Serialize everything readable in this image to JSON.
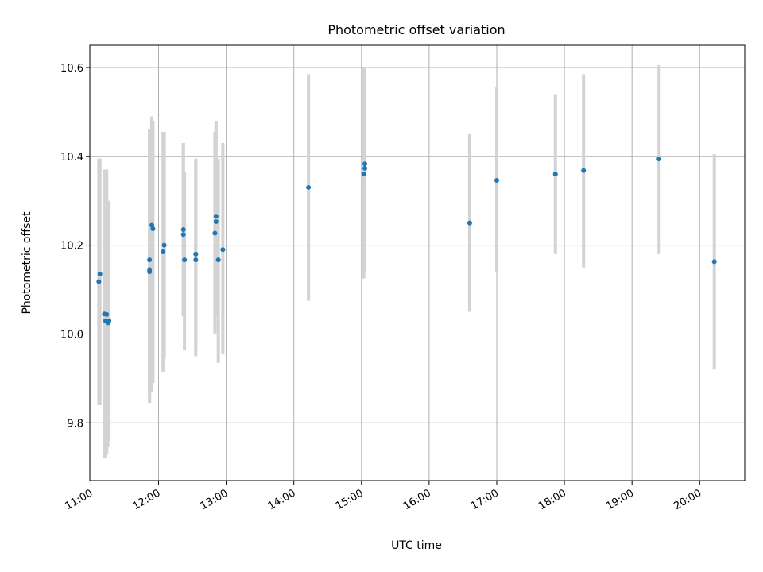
{
  "chart_data": {
    "type": "scatter",
    "title": "Photometric offset variation",
    "xlabel": "UTC time",
    "ylabel": "Photometric offset",
    "x_ticks": [
      "11:00",
      "12:00",
      "13:00",
      "14:00",
      "15:00",
      "16:00",
      "17:00",
      "18:00",
      "19:00",
      "20:00"
    ],
    "y_ticks": [
      "9.8",
      "10.0",
      "10.2",
      "10.4",
      "10.6"
    ],
    "xlim": [
      "10:59",
      "20:40"
    ],
    "ylim": [
      9.67,
      10.65
    ],
    "grid": true,
    "marker_color": "#1f77b4",
    "errorbar_color": "#d3d3d3",
    "points": [
      {
        "t": "11:08",
        "y": 10.135,
        "lo": 9.84,
        "hi": 10.395
      },
      {
        "t": "11:07",
        "y": 10.118,
        "lo": 9.84,
        "hi": 10.395
      },
      {
        "t": "11:12",
        "y": 10.045,
        "lo": 9.72,
        "hi": 10.37
      },
      {
        "t": "11:13",
        "y": 10.03,
        "lo": 9.72,
        "hi": 10.37
      },
      {
        "t": "11:14",
        "y": 10.044,
        "lo": 9.73,
        "hi": 10.37
      },
      {
        "t": "11:15",
        "y": 10.025,
        "lo": 9.745,
        "hi": 10.3
      },
      {
        "t": "11:16",
        "y": 10.03,
        "lo": 9.76,
        "hi": 10.3
      },
      {
        "t": "11:52",
        "y": 10.167,
        "lo": 9.845,
        "hi": 10.46
      },
      {
        "t": "11:52",
        "y": 10.14,
        "lo": 9.845,
        "hi": 10.46
      },
      {
        "t": "11:52",
        "y": 10.145,
        "lo": 9.86,
        "hi": 10.46
      },
      {
        "t": "11:54",
        "y": 10.245,
        "lo": 9.87,
        "hi": 10.49
      },
      {
        "t": "11:55",
        "y": 10.237,
        "lo": 9.89,
        "hi": 10.48
      },
      {
        "t": "12:04",
        "y": 10.185,
        "lo": 9.915,
        "hi": 10.455
      },
      {
        "t": "12:05",
        "y": 10.2,
        "lo": 9.945,
        "hi": 10.455
      },
      {
        "t": "12:22",
        "y": 10.235,
        "lo": 10.04,
        "hi": 10.43
      },
      {
        "t": "12:22",
        "y": 10.224,
        "lo": 10.04,
        "hi": 10.43
      },
      {
        "t": "12:23",
        "y": 10.167,
        "lo": 9.965,
        "hi": 10.365
      },
      {
        "t": "12:33",
        "y": 10.18,
        "lo": 9.95,
        "hi": 10.395
      },
      {
        "t": "12:33",
        "y": 10.167,
        "lo": 9.965,
        "hi": 10.39
      },
      {
        "t": "12:50",
        "y": 10.227,
        "lo": 10.0,
        "hi": 10.455
      },
      {
        "t": "12:51",
        "y": 10.265,
        "lo": 10.05,
        "hi": 10.48
      },
      {
        "t": "12:51",
        "y": 10.253,
        "lo": 10.04,
        "hi": 10.47
      },
      {
        "t": "12:53",
        "y": 10.167,
        "lo": 9.935,
        "hi": 10.395
      },
      {
        "t": "12:57",
        "y": 10.19,
        "lo": 9.955,
        "hi": 10.43
      },
      {
        "t": "14:13",
        "y": 10.33,
        "lo": 10.075,
        "hi": 10.585
      },
      {
        "t": "15:02",
        "y": 10.36,
        "lo": 10.125,
        "hi": 10.6
      },
      {
        "t": "15:03",
        "y": 10.373,
        "lo": 10.14,
        "hi": 10.595
      },
      {
        "t": "15:03",
        "y": 10.383,
        "lo": 10.155,
        "hi": 10.6
      },
      {
        "t": "16:36",
        "y": 10.25,
        "lo": 10.05,
        "hi": 10.45
      },
      {
        "t": "17:00",
        "y": 10.346,
        "lo": 10.14,
        "hi": 10.555
      },
      {
        "t": "17:52",
        "y": 10.36,
        "lo": 10.18,
        "hi": 10.54
      },
      {
        "t": "18:17",
        "y": 10.368,
        "lo": 10.15,
        "hi": 10.585
      },
      {
        "t": "19:24",
        "y": 10.394,
        "lo": 10.18,
        "hi": 10.605
      },
      {
        "t": "20:13",
        "y": 10.163,
        "lo": 9.92,
        "hi": 10.405
      }
    ]
  }
}
